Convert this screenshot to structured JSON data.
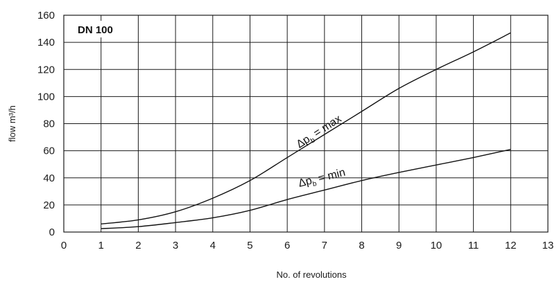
{
  "chart_data": {
    "type": "line",
    "title": "",
    "box_label": "DN 100",
    "xlabel": "No. of revolutions",
    "ylabel": "flow m³/h",
    "xlim": [
      0,
      13
    ],
    "ylim": [
      0,
      160
    ],
    "xticks": [
      0,
      1,
      2,
      3,
      4,
      5,
      6,
      7,
      8,
      9,
      10,
      11,
      12,
      13
    ],
    "yticks": [
      0,
      20,
      40,
      60,
      80,
      100,
      120,
      140,
      160
    ],
    "grid": true,
    "series": [
      {
        "name": "max",
        "label_main": "Δp",
        "label_sub": "b",
        "label_rest": " = max",
        "x": [
          1,
          2,
          3,
          4,
          5,
          6,
          7,
          8,
          9,
          10,
          11,
          12
        ],
        "y": [
          6,
          9,
          15,
          25,
          38,
          55,
          72,
          89,
          106,
          120,
          133,
          147
        ]
      },
      {
        "name": "min",
        "label_main": "Δp",
        "label_sub": "b",
        "label_rest": " = min",
        "x": [
          1,
          2,
          3,
          4,
          5,
          6,
          7,
          8,
          9,
          10,
          11,
          12
        ],
        "y": [
          2.5,
          4,
          7,
          10.5,
          16,
          24,
          31,
          38,
          44,
          49.5,
          55,
          61
        ]
      }
    ]
  }
}
